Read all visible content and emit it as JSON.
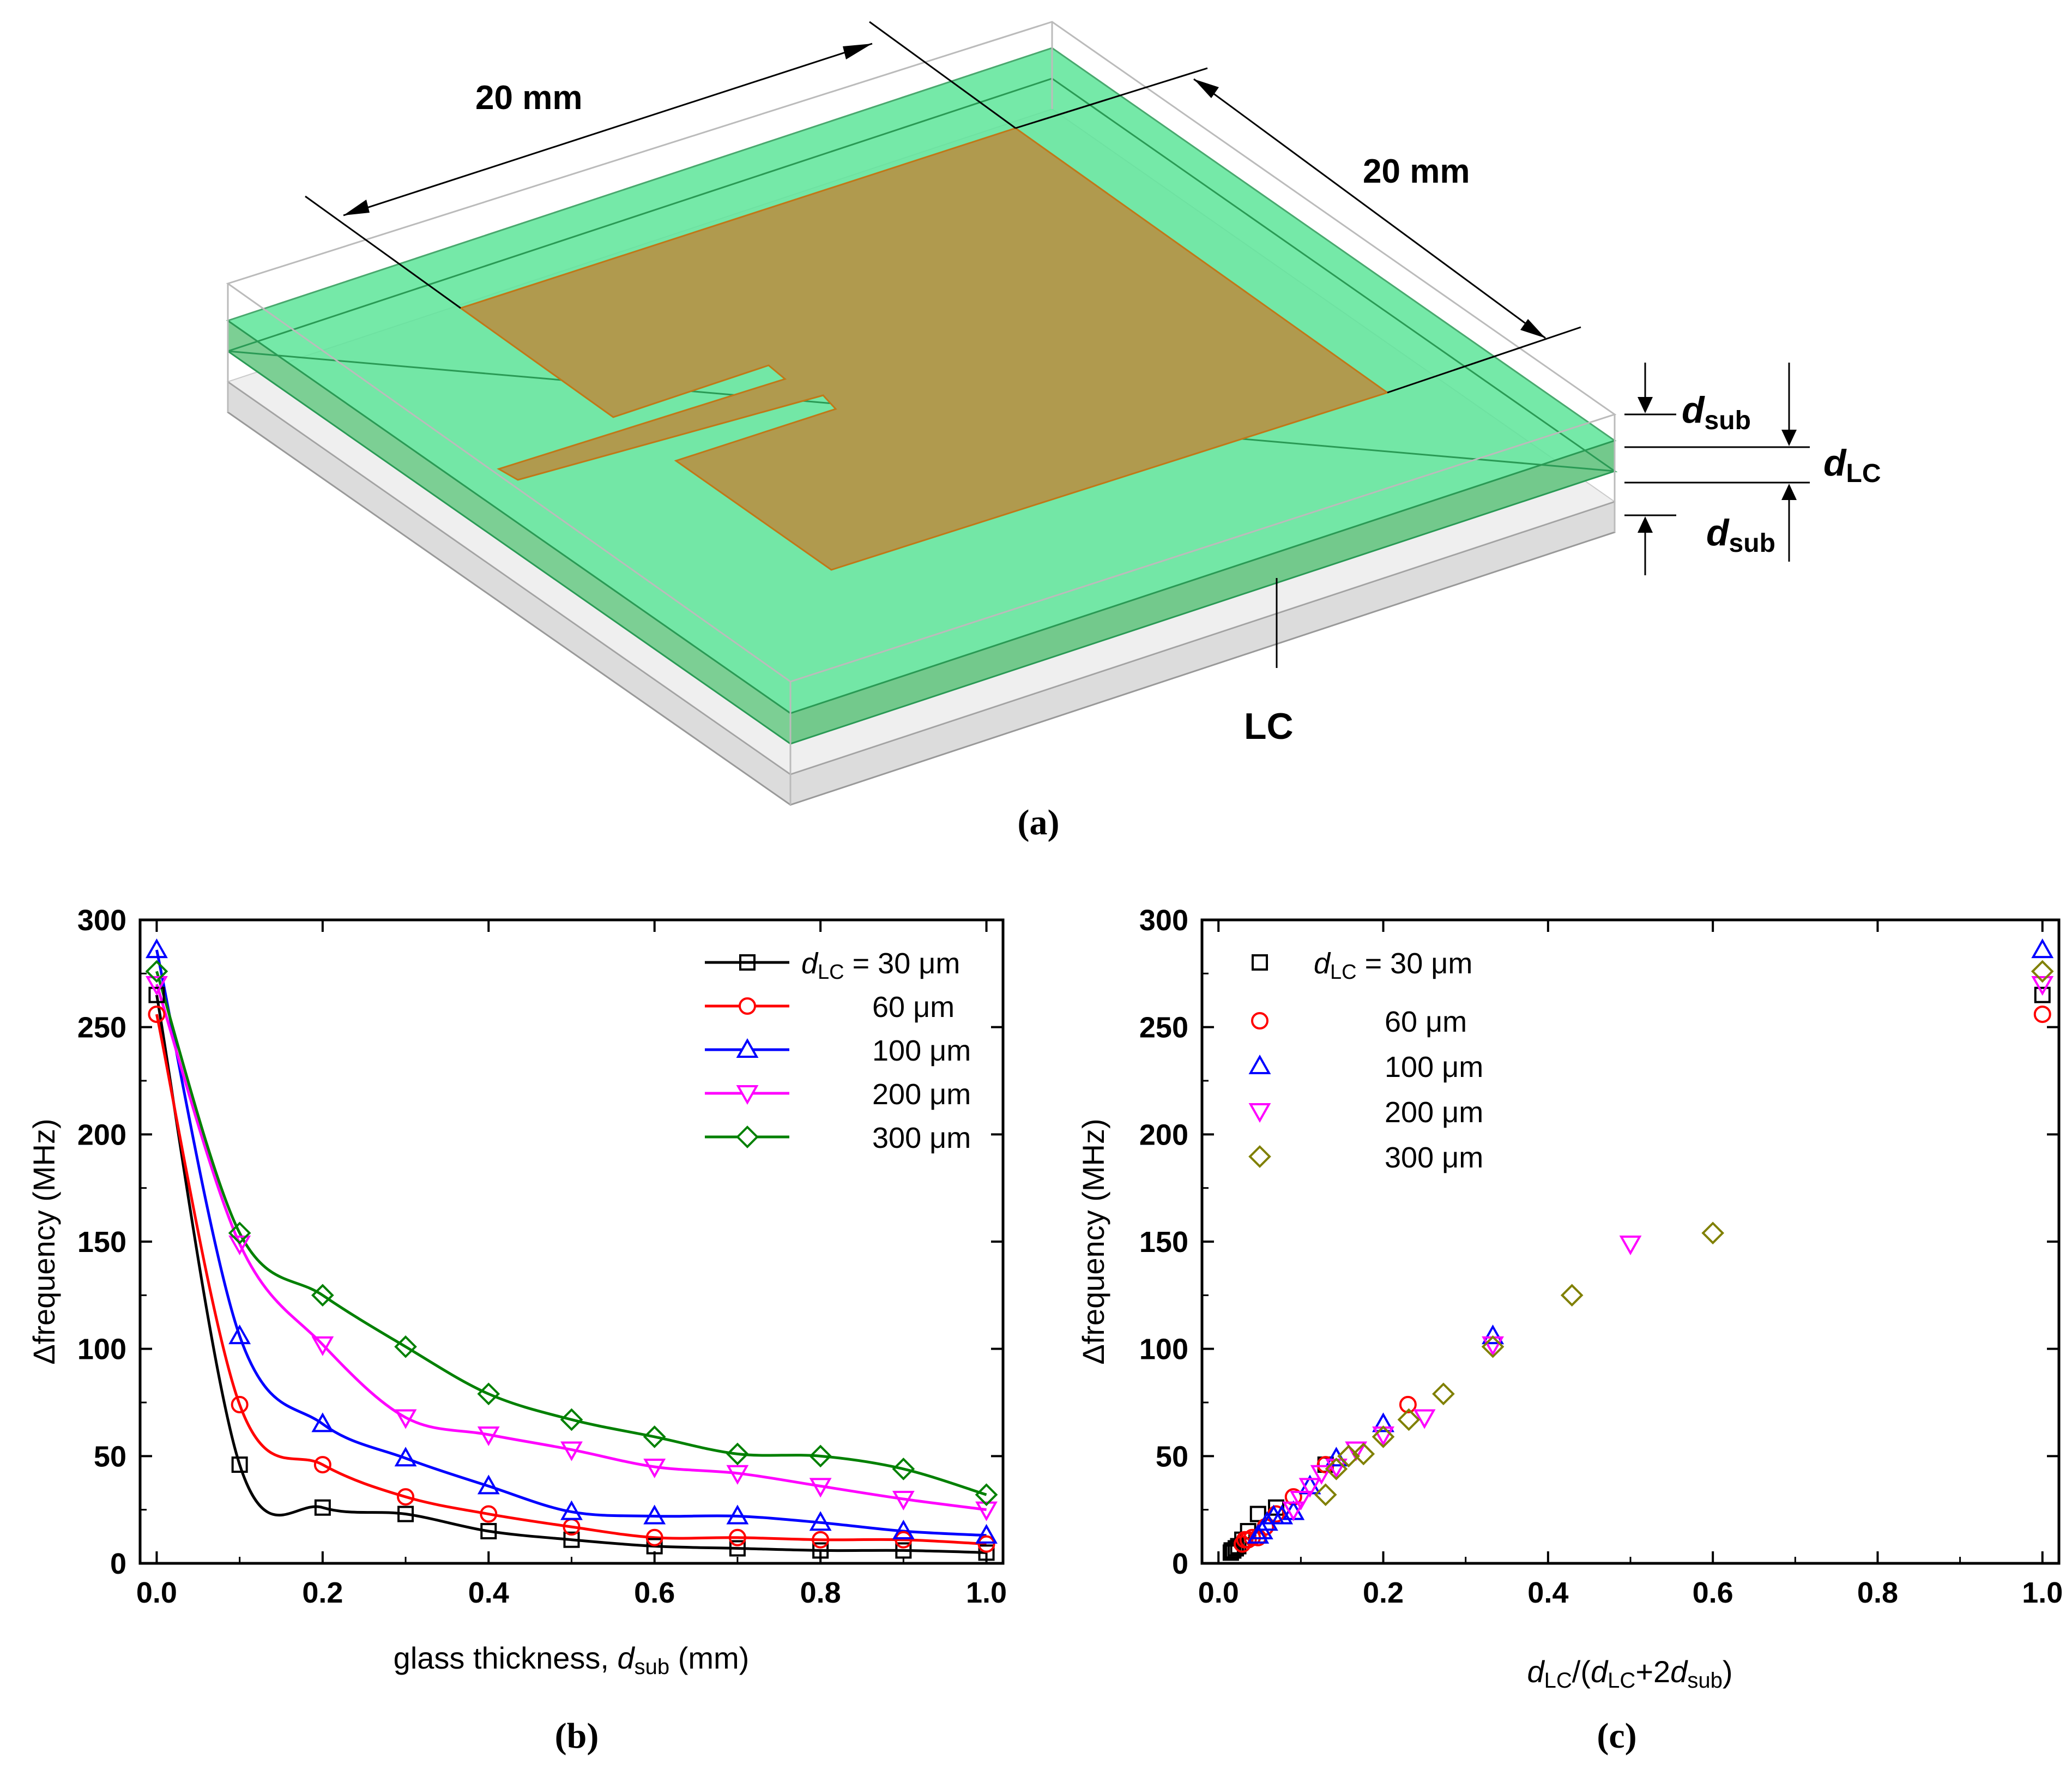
{
  "panel_labels": {
    "a": "(a)",
    "b": "(b)",
    "c": "(c)"
  },
  "diagram": {
    "width_label": "20 mm",
    "depth_label": "20 mm",
    "dsub_top": {
      "main": "d",
      "sub": "sub"
    },
    "dlc": {
      "main": "d",
      "sub": "LC"
    },
    "dsub_bottom": {
      "main": "d",
      "sub": "sub"
    },
    "lc_label": "LC",
    "colors": {
      "glass_green": "#5ee69a",
      "patch": "#b09a4e",
      "patch_edge": "#c07818",
      "bottom_gray": "#dcdcdc"
    }
  },
  "chart_data": [
    {
      "id": "b",
      "type": "line",
      "xlabel": {
        "main": "glass thickness, ",
        "italic": "d",
        "sub": "sub",
        "unit": " (mm)"
      },
      "ylabel": "Δfrequency (MHz)",
      "xlim": [
        -0.02,
        1.02
      ],
      "ylim": [
        0,
        300
      ],
      "xticks": [
        "0.0",
        "0.2",
        "0.4",
        "0.6",
        "0.8",
        "1.0"
      ],
      "xtick_values": [
        0,
        0.2,
        0.4,
        0.6,
        0.8,
        1.0
      ],
      "yticks": [
        "0",
        "50",
        "100",
        "150",
        "200",
        "250",
        "300"
      ],
      "ytick_values": [
        0,
        50,
        100,
        150,
        200,
        250,
        300
      ],
      "legend_position": "top-right",
      "legend": [
        {
          "prefix": "d",
          "sub": "LC",
          "text": " = 30 μm"
        },
        {
          "text": "60 μm"
        },
        {
          "text": "100 μm"
        },
        {
          "text": "200 μm"
        },
        {
          "text": "300 μm"
        }
      ],
      "x": [
        0,
        0.1,
        0.2,
        0.3,
        0.4,
        0.5,
        0.6,
        0.7,
        0.8,
        0.9,
        1.0
      ],
      "series": [
        {
          "marker": "square",
          "color": "#000000",
          "values": [
            265,
            46,
            26,
            23,
            15,
            11,
            8,
            7,
            6,
            6,
            5
          ]
        },
        {
          "marker": "circle",
          "color": "#ff0000",
          "values": [
            256,
            74,
            46,
            31,
            23,
            17,
            12,
            12,
            11,
            11,
            9
          ]
        },
        {
          "marker": "triangle-up",
          "color": "#0000ff",
          "values": [
            286,
            106,
            65,
            49,
            36,
            24,
            22,
            22,
            19,
            15,
            13
          ]
        },
        {
          "marker": "triangle-down",
          "color": "#ff00ff",
          "values": [
            270,
            149,
            102,
            68,
            60,
            53,
            45,
            42,
            36,
            30,
            25
          ]
        },
        {
          "marker": "diamond",
          "color": "#008000",
          "values": [
            276,
            154,
            125,
            101,
            79,
            67,
            59,
            51,
            50,
            44,
            32
          ]
        }
      ]
    },
    {
      "id": "c",
      "type": "scatter",
      "xlabel": {
        "d1": "d",
        "s1": "LC",
        "t1": "/(",
        "d2": "d",
        "s2": "LC",
        "t2": "+2",
        "d3": "d",
        "s3": "sub",
        "t3": ")"
      },
      "ylabel": "Δfrequency (MHz)",
      "xlim": [
        -0.02,
        1.02
      ],
      "ylim": [
        0,
        300
      ],
      "xticks": [
        "0.0",
        "0.2",
        "0.4",
        "0.6",
        "0.8",
        "1.0"
      ],
      "xtick_values": [
        0,
        0.2,
        0.4,
        0.6,
        0.8,
        1.0
      ],
      "yticks": [
        "0",
        "50",
        "100",
        "150",
        "200",
        "250",
        "300"
      ],
      "ytick_values": [
        0,
        50,
        100,
        150,
        200,
        250,
        300
      ],
      "legend_position": "top-left",
      "legend": [
        {
          "prefix": "d",
          "sub": "LC",
          "text": " = 30 μm"
        },
        {
          "text": "60 μm"
        },
        {
          "text": "100 μm"
        },
        {
          "text": "200 μm"
        },
        {
          "text": "300 μm"
        }
      ],
      "series": [
        {
          "marker": "square",
          "color": "#000000",
          "x": [
            1.0,
            0.13,
            0.07,
            0.048,
            0.036,
            0.029,
            0.024,
            0.021,
            0.018,
            0.016,
            0.015
          ],
          "y": [
            265,
            46,
            26,
            23,
            15,
            11,
            8,
            7,
            6,
            6,
            5
          ]
        },
        {
          "marker": "circle",
          "color": "#ff0000",
          "x": [
            1.0,
            0.23,
            0.13,
            0.091,
            0.07,
            0.057,
            0.048,
            0.041,
            0.036,
            0.032,
            0.029
          ],
          "y": [
            256,
            74,
            46,
            31,
            23,
            17,
            12,
            12,
            11,
            11,
            9
          ]
        },
        {
          "marker": "triangle-up",
          "color": "#0000ff",
          "x": [
            1.0,
            0.333,
            0.2,
            0.143,
            0.111,
            0.091,
            0.077,
            0.067,
            0.059,
            0.053,
            0.048
          ],
          "y": [
            286,
            106,
            65,
            49,
            36,
            24,
            22,
            22,
            19,
            15,
            13
          ]
        },
        {
          "marker": "triangle-down",
          "color": "#ff00ff",
          "x": [
            1.0,
            0.5,
            0.333,
            0.25,
            0.2,
            0.167,
            0.143,
            0.125,
            0.111,
            0.1,
            0.091
          ],
          "y": [
            270,
            149,
            102,
            68,
            60,
            53,
            45,
            42,
            36,
            30,
            25
          ]
        },
        {
          "marker": "diamond",
          "color": "#808000",
          "x": [
            1.0,
            0.6,
            0.429,
            0.333,
            0.273,
            0.231,
            0.2,
            0.176,
            0.158,
            0.143,
            0.13
          ],
          "y": [
            276,
            154,
            125,
            101,
            79,
            67,
            59,
            51,
            50,
            44,
            32
          ]
        }
      ]
    }
  ]
}
